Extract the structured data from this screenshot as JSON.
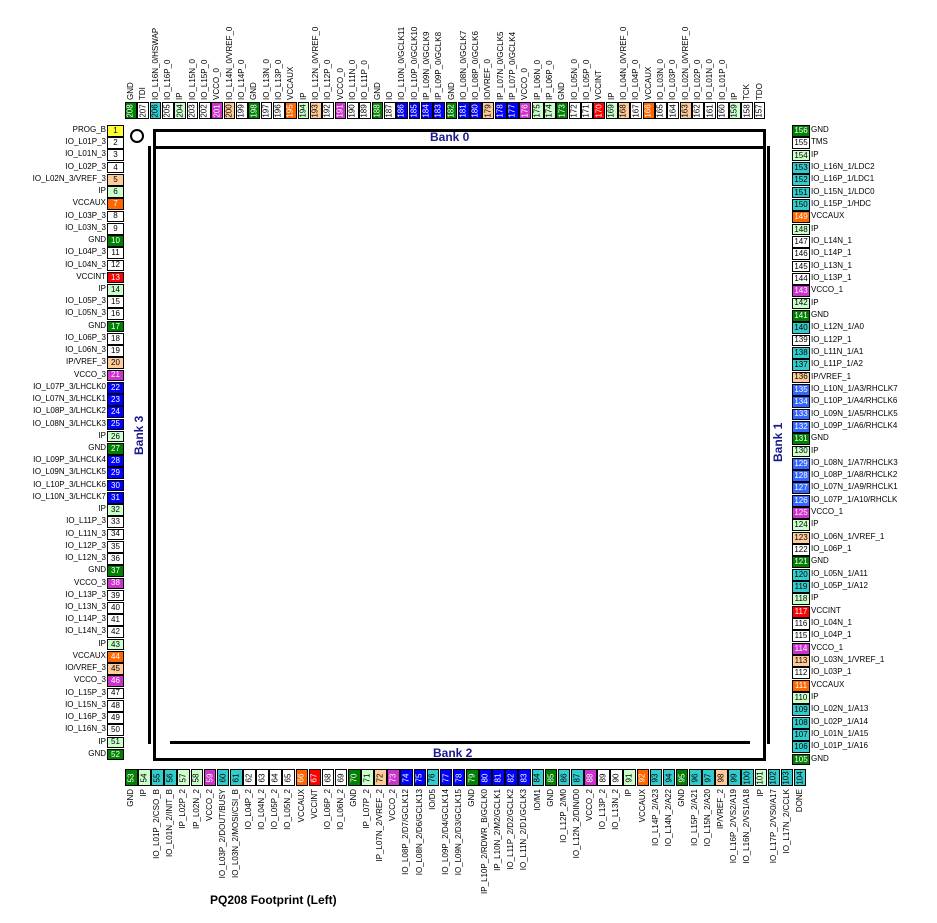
{
  "title": "PQ208 Footprint (Left)",
  "banks": {
    "top": "Bank 0",
    "right": "Bank 1",
    "bottom": "Bank 2",
    "left": "Bank 3"
  },
  "colors": {
    "GND": "#008000",
    "VCCO": "#cc33cc",
    "VCCINT": "#ff0000",
    "VCCAUX": "#ff6600",
    "IP": "#ccffcc",
    "VREF": "#ffcc99",
    "GCLK": "#0000ff",
    "LHCLK": "#0000ff",
    "RHCLK": "#3366ff",
    "CONFIG": "#33cccc",
    "PROG": "#ffff33",
    "IO": "#ffffff",
    "JTAG": "#ffffff",
    "DUAL": "#33cccc"
  },
  "left_pins": [
    {
      "n": "1",
      "label": "PROG_B",
      "type": "PROG"
    },
    {
      "n": "2",
      "label": "IO_L01P_3",
      "type": "IO"
    },
    {
      "n": "3",
      "label": "IO_L01N_3",
      "type": "IO"
    },
    {
      "n": "4",
      "label": "IO_L02P_3",
      "type": "IO"
    },
    {
      "n": "5",
      "label": "IO_L02N_3/VREF_3",
      "type": "VREF"
    },
    {
      "n": "6",
      "label": "IP",
      "type": "IP"
    },
    {
      "n": "7",
      "label": "VCCAUX",
      "type": "VCCAUX"
    },
    {
      "n": "8",
      "label": "IO_L03P_3",
      "type": "IO"
    },
    {
      "n": "9",
      "label": "IO_L03N_3",
      "type": "IO"
    },
    {
      "n": "10",
      "label": "GND",
      "type": "GND"
    },
    {
      "n": "11",
      "label": "IO_L04P_3",
      "type": "IO"
    },
    {
      "n": "12",
      "label": "IO_L04N_3",
      "type": "IO"
    },
    {
      "n": "13",
      "label": "VCCINT",
      "type": "VCCINT"
    },
    {
      "n": "14",
      "label": "IP",
      "type": "IP"
    },
    {
      "n": "15",
      "label": "IO_L05P_3",
      "type": "IO"
    },
    {
      "n": "16",
      "label": "IO_L05N_3",
      "type": "IO"
    },
    {
      "n": "17",
      "label": "GND",
      "type": "GND"
    },
    {
      "n": "18",
      "label": "IO_L06P_3",
      "type": "IO"
    },
    {
      "n": "19",
      "label": "IO_L06N_3",
      "type": "IO"
    },
    {
      "n": "20",
      "label": "IP/VREF_3",
      "type": "VREF"
    },
    {
      "n": "21",
      "label": "VCCO_3",
      "type": "VCCO"
    },
    {
      "n": "22",
      "label": "IO_L07P_3/LHCLK0",
      "type": "LHCLK"
    },
    {
      "n": "23",
      "label": "IO_L07N_3/LHCLK1",
      "type": "LHCLK"
    },
    {
      "n": "24",
      "label": "IO_L08P_3/LHCLK2",
      "type": "LHCLK"
    },
    {
      "n": "25",
      "label": "IO_L08N_3/LHCLK3",
      "type": "LHCLK"
    },
    {
      "n": "26",
      "label": "IP",
      "type": "IP"
    },
    {
      "n": "27",
      "label": "GND",
      "type": "GND"
    },
    {
      "n": "28",
      "label": "IO_L09P_3/LHCLK4",
      "type": "LHCLK"
    },
    {
      "n": "29",
      "label": "IO_L09N_3/LHCLK5",
      "type": "LHCLK"
    },
    {
      "n": "30",
      "label": "IO_L10P_3/LHCLK6",
      "type": "LHCLK"
    },
    {
      "n": "31",
      "label": "IO_L10N_3/LHCLK7",
      "type": "LHCLK"
    },
    {
      "n": "32",
      "label": "IP",
      "type": "IP"
    },
    {
      "n": "33",
      "label": "IO_L11P_3",
      "type": "IO"
    },
    {
      "n": "34",
      "label": "IO_L11N_3",
      "type": "IO"
    },
    {
      "n": "35",
      "label": "IO_L12P_3",
      "type": "IO"
    },
    {
      "n": "36",
      "label": "IO_L12N_3",
      "type": "IO"
    },
    {
      "n": "37",
      "label": "GND",
      "type": "GND"
    },
    {
      "n": "38",
      "label": "VCCO_3",
      "type": "VCCO"
    },
    {
      "n": "39",
      "label": "IO_L13P_3",
      "type": "IO"
    },
    {
      "n": "40",
      "label": "IO_L13N_3",
      "type": "IO"
    },
    {
      "n": "41",
      "label": "IO_L14P_3",
      "type": "IO"
    },
    {
      "n": "42",
      "label": "IO_L14N_3",
      "type": "IO"
    },
    {
      "n": "43",
      "label": "IP",
      "type": "IP"
    },
    {
      "n": "44",
      "label": "VCCAUX",
      "type": "VCCAUX"
    },
    {
      "n": "45",
      "label": "IO/VREF_3",
      "type": "VREF"
    },
    {
      "n": "46",
      "label": "VCCO_3",
      "type": "VCCO"
    },
    {
      "n": "47",
      "label": "IO_L15P_3",
      "type": "IO"
    },
    {
      "n": "48",
      "label": "IO_L15N_3",
      "type": "IO"
    },
    {
      "n": "49",
      "label": "IO_L16P_3",
      "type": "IO"
    },
    {
      "n": "50",
      "label": "IO_L16N_3",
      "type": "IO"
    },
    {
      "n": "51",
      "label": "IP",
      "type": "IP"
    },
    {
      "n": "52",
      "label": "GND",
      "type": "GND"
    }
  ],
  "right_pins": [
    {
      "n": "156",
      "label": "GND",
      "type": "GND"
    },
    {
      "n": "155",
      "label": "TMS",
      "type": "JTAG"
    },
    {
      "n": "154",
      "label": "IP",
      "type": "IP"
    },
    {
      "n": "153",
      "label": "IO_L16N_1/LDC2",
      "type": "DUAL"
    },
    {
      "n": "152",
      "label": "IO_L16P_1/LDC1",
      "type": "DUAL"
    },
    {
      "n": "151",
      "label": "IO_L15N_1/LDC0",
      "type": "DUAL"
    },
    {
      "n": "150",
      "label": "IO_L15P_1/HDC",
      "type": "DUAL"
    },
    {
      "n": "149",
      "label": "VCCAUX",
      "type": "VCCAUX"
    },
    {
      "n": "148",
      "label": "IP",
      "type": "IP"
    },
    {
      "n": "147",
      "label": "IO_L14N_1",
      "type": "IO"
    },
    {
      "n": "146",
      "label": "IO_L14P_1",
      "type": "IO"
    },
    {
      "n": "145",
      "label": "IO_L13N_1",
      "type": "IO"
    },
    {
      "n": "144",
      "label": "IO_L13P_1",
      "type": "IO"
    },
    {
      "n": "143",
      "label": "VCCO_1",
      "type": "VCCO"
    },
    {
      "n": "142",
      "label": "IP",
      "type": "IP"
    },
    {
      "n": "141",
      "label": "GND",
      "type": "GND"
    },
    {
      "n": "140",
      "label": "IO_L12N_1/A0",
      "type": "DUAL"
    },
    {
      "n": "139",
      "label": "IO_L12P_1",
      "type": "IO"
    },
    {
      "n": "138",
      "label": "IO_L11N_1/A1",
      "type": "DUAL"
    },
    {
      "n": "137",
      "label": "IO_L11P_1/A2",
      "type": "DUAL"
    },
    {
      "n": "136",
      "label": "IP/VREF_1",
      "type": "VREF"
    },
    {
      "n": "135",
      "label": "IO_L10N_1/A3/RHCLK7",
      "type": "RHCLK"
    },
    {
      "n": "134",
      "label": "IO_L10P_1/A4/RHCLK6",
      "type": "RHCLK"
    },
    {
      "n": "133",
      "label": "IO_L09N_1/A5/RHCLK5",
      "type": "RHCLK"
    },
    {
      "n": "132",
      "label": "IO_L09P_1/A6/RHCLK4",
      "type": "RHCLK"
    },
    {
      "n": "131",
      "label": "GND",
      "type": "GND"
    },
    {
      "n": "130",
      "label": "IP",
      "type": "IP"
    },
    {
      "n": "129",
      "label": "IO_L08N_1/A7/RHCLK3",
      "type": "RHCLK"
    },
    {
      "n": "128",
      "label": "IO_L08P_1/A8/RHCLK2",
      "type": "RHCLK"
    },
    {
      "n": "127",
      "label": "IO_L07N_1/A9/RHCLK1",
      "type": "RHCLK"
    },
    {
      "n": "126",
      "label": "IO_L07P_1/A10/RHCLK",
      "type": "RHCLK"
    },
    {
      "n": "125",
      "label": "VCCO_1",
      "type": "VCCO"
    },
    {
      "n": "124",
      "label": "IP",
      "type": "IP"
    },
    {
      "n": "123",
      "label": "IO_L06N_1/VREF_1",
      "type": "VREF"
    },
    {
      "n": "122",
      "label": "IO_L06P_1",
      "type": "IO"
    },
    {
      "n": "121",
      "label": "GND",
      "type": "GND"
    },
    {
      "n": "120",
      "label": "IO_L05N_1/A11",
      "type": "DUAL"
    },
    {
      "n": "119",
      "label": "IO_L05P_1/A12",
      "type": "DUAL"
    },
    {
      "n": "118",
      "label": "IP",
      "type": "IP"
    },
    {
      "n": "117",
      "label": "VCCINT",
      "type": "VCCINT"
    },
    {
      "n": "116",
      "label": "IO_L04N_1",
      "type": "IO"
    },
    {
      "n": "115",
      "label": "IO_L04P_1",
      "type": "IO"
    },
    {
      "n": "114",
      "label": "VCCO_1",
      "type": "VCCO"
    },
    {
      "n": "113",
      "label": "IO_L03N_1/VREF_1",
      "type": "VREF"
    },
    {
      "n": "112",
      "label": "IO_L03P_1",
      "type": "IO"
    },
    {
      "n": "111",
      "label": "VCCAUX",
      "type": "VCCAUX"
    },
    {
      "n": "110",
      "label": "IP",
      "type": "IP"
    },
    {
      "n": "109",
      "label": "IO_L02N_1/A13",
      "type": "DUAL"
    },
    {
      "n": "108",
      "label": "IO_L02P_1/A14",
      "type": "DUAL"
    },
    {
      "n": "107",
      "label": "IO_L01N_1/A15",
      "type": "DUAL"
    },
    {
      "n": "106",
      "label": "IO_L01P_1/A16",
      "type": "DUAL"
    },
    {
      "n": "105",
      "label": "GND",
      "type": "GND"
    }
  ],
  "top_pins": [
    {
      "n": "208",
      "label": "GND",
      "type": "GND"
    },
    {
      "n": "207",
      "label": "TDI",
      "type": "JTAG"
    },
    {
      "n": "206",
      "label": "IO_L16N_0/HSWAP",
      "type": "DUAL"
    },
    {
      "n": "205",
      "label": "IO_L16P_0",
      "type": "IO"
    },
    {
      "n": "204",
      "label": "IP",
      "type": "IP"
    },
    {
      "n": "203",
      "label": "IO_L15N_0",
      "type": "IO"
    },
    {
      "n": "202",
      "label": "IO_L15P_0",
      "type": "IO"
    },
    {
      "n": "201",
      "label": "VCCO_0",
      "type": "VCCO"
    },
    {
      "n": "200",
      "label": "IO_L14N_0/VREF_0",
      "type": "VREF"
    },
    {
      "n": "199",
      "label": "IO_L14P_0",
      "type": "IO"
    },
    {
      "n": "198",
      "label": "GND",
      "type": "GND"
    },
    {
      "n": "197",
      "label": "IO_L13N_0",
      "type": "IO"
    },
    {
      "n": "196",
      "label": "IO_L13P_0",
      "type": "IO"
    },
    {
      "n": "195",
      "label": "VCCAUX",
      "type": "VCCAUX"
    },
    {
      "n": "194",
      "label": "IP",
      "type": "IP"
    },
    {
      "n": "193",
      "label": "IO_L12N_0/VREF_0",
      "type": "VREF"
    },
    {
      "n": "192",
      "label": "IO_L12P_0",
      "type": "IO"
    },
    {
      "n": "191",
      "label": "VCCO_0",
      "type": "VCCO"
    },
    {
      "n": "190",
      "label": "IO_L11N_0",
      "type": "IO"
    },
    {
      "n": "189",
      "label": "IO_L11P_0",
      "type": "IO"
    },
    {
      "n": "188",
      "label": "GND",
      "type": "GND"
    },
    {
      "n": "187",
      "label": "IO",
      "type": "IO"
    },
    {
      "n": "186",
      "label": "IO_L10N_0/GCLK11",
      "type": "GCLK"
    },
    {
      "n": "185",
      "label": "IO_L10P_0/GCLK10",
      "type": "GCLK"
    },
    {
      "n": "184",
      "label": "IP_L09N_0/GCLK9",
      "type": "GCLK"
    },
    {
      "n": "183",
      "label": "IP_L09P_0/GCLK8",
      "type": "GCLK"
    },
    {
      "n": "182",
      "label": "GND",
      "type": "GND"
    },
    {
      "n": "181",
      "label": "IO_L08N_0/GCLK7",
      "type": "GCLK"
    },
    {
      "n": "180",
      "label": "IO_L08P_0/GCLK6",
      "type": "GCLK"
    },
    {
      "n": "179",
      "label": "IO/VREF_0",
      "type": "VREF"
    },
    {
      "n": "178",
      "label": "IP_L07N_0/GCLK5",
      "type": "GCLK"
    },
    {
      "n": "177",
      "label": "IP_L07P_0/GCLK4",
      "type": "GCLK"
    },
    {
      "n": "176",
      "label": "VCCO_0",
      "type": "VCCO"
    },
    {
      "n": "175",
      "label": "IP_L06N_0",
      "type": "IP"
    },
    {
      "n": "174",
      "label": "IP_L06P_0",
      "type": "IP"
    },
    {
      "n": "173",
      "label": "GND",
      "type": "GND"
    },
    {
      "n": "172",
      "label": "IO_L05N_0",
      "type": "IO"
    },
    {
      "n": "171",
      "label": "IO_L05P_0",
      "type": "IO"
    },
    {
      "n": "170",
      "label": "VCCINT",
      "type": "VCCINT"
    },
    {
      "n": "169",
      "label": "IP",
      "type": "IP"
    },
    {
      "n": "168",
      "label": "IO_L04N_0/VREF_0",
      "type": "VREF"
    },
    {
      "n": "167",
      "label": "IO_L04P_0",
      "type": "IO"
    },
    {
      "n": "166",
      "label": "VCCAUX",
      "type": "VCCAUX"
    },
    {
      "n": "165",
      "label": "IO_L03N_0",
      "type": "IO"
    },
    {
      "n": "164",
      "label": "IO_L03P_0",
      "type": "IO"
    },
    {
      "n": "163",
      "label": "IO_L02N_0/VREF_0",
      "type": "VREF"
    },
    {
      "n": "162",
      "label": "IO_L02P_0",
      "type": "IO"
    },
    {
      "n": "161",
      "label": "IO_L01N_0",
      "type": "IO"
    },
    {
      "n": "160",
      "label": "IO_L01P_0",
      "type": "IO"
    },
    {
      "n": "159",
      "label": "IP",
      "type": "IP"
    },
    {
      "n": "158",
      "label": "TCK",
      "type": "JTAG"
    },
    {
      "n": "157",
      "label": "TDO",
      "type": "JTAG"
    }
  ],
  "bottom_pins": [
    {
      "n": "53",
      "label": "GND",
      "type": "GND"
    },
    {
      "n": "54",
      "label": "IP",
      "type": "IP"
    },
    {
      "n": "55",
      "label": "IO_L01P_2/CSO_B",
      "type": "DUAL"
    },
    {
      "n": "56",
      "label": "IO_L01N_2/INIT_B",
      "type": "DUAL"
    },
    {
      "n": "57",
      "label": "IP_L02P_2",
      "type": "IP"
    },
    {
      "n": "58",
      "label": "IP_L02N_2",
      "type": "IP"
    },
    {
      "n": "59",
      "label": "VCCO_2",
      "type": "VCCO"
    },
    {
      "n": "60",
      "label": "IO_L03P_2/DOUT/BUSY",
      "type": "DUAL"
    },
    {
      "n": "61",
      "label": "IO_L03N_2/MOSI/CSI_B",
      "type": "DUAL"
    },
    {
      "n": "62",
      "label": "IO_L04P_2",
      "type": "IO"
    },
    {
      "n": "63",
      "label": "IO_L04N_2",
      "type": "IO"
    },
    {
      "n": "64",
      "label": "IO_L05P_2",
      "type": "IO"
    },
    {
      "n": "65",
      "label": "IO_L05N_2",
      "type": "IO"
    },
    {
      "n": "66",
      "label": "VCCAUX",
      "type": "VCCAUX"
    },
    {
      "n": "67",
      "label": "VCCINT",
      "type": "VCCINT"
    },
    {
      "n": "68",
      "label": "IO_L06P_2",
      "type": "IO"
    },
    {
      "n": "69",
      "label": "IO_L06N_2",
      "type": "IO"
    },
    {
      "n": "70",
      "label": "GND",
      "type": "GND"
    },
    {
      "n": "71",
      "label": "IP_L07P_2",
      "type": "IP"
    },
    {
      "n": "72",
      "label": "IP_L07N_2/VREF_2",
      "type": "VREF"
    },
    {
      "n": "73",
      "label": "VCCO_2",
      "type": "VCCO"
    },
    {
      "n": "74",
      "label": "IO_L08P_2/D7/GCLK12",
      "type": "GCLK"
    },
    {
      "n": "75",
      "label": "IO_L08N_2/D6/GCLK13",
      "type": "GCLK"
    },
    {
      "n": "76",
      "label": "IO/D5",
      "type": "DUAL"
    },
    {
      "n": "77",
      "label": "IO_L09P_2/D4/GCLK14",
      "type": "GCLK"
    },
    {
      "n": "78",
      "label": "IO_L09N_2/D3/GCLK15",
      "type": "GCLK"
    },
    {
      "n": "79",
      "label": "GND",
      "type": "GND"
    },
    {
      "n": "80",
      "label": "IP_L10P_2/RDWR_B/GCLK0",
      "type": "GCLK"
    },
    {
      "n": "81",
      "label": "IP_L10N_2/M2/GCLK1",
      "type": "GCLK"
    },
    {
      "n": "82",
      "label": "IO_L11P_2/D2/GCLK2",
      "type": "GCLK"
    },
    {
      "n": "83",
      "label": "IO_L11N_2/D1/GCLK3",
      "type": "GCLK"
    },
    {
      "n": "84",
      "label": "IO/M1",
      "type": "DUAL"
    },
    {
      "n": "85",
      "label": "GND",
      "type": "GND"
    },
    {
      "n": "86",
      "label": "IO_L12P_2/M0",
      "type": "DUAL"
    },
    {
      "n": "87",
      "label": "IO_L12N_2/DIN/D0",
      "type": "DUAL"
    },
    {
      "n": "88",
      "label": "VCCO_2",
      "type": "VCCO"
    },
    {
      "n": "89",
      "label": "IO_L13P_2",
      "type": "IO"
    },
    {
      "n": "90",
      "label": "IO_L13N_2",
      "type": "IO"
    },
    {
      "n": "91",
      "label": "IP",
      "type": "IP"
    },
    {
      "n": "92",
      "label": "VCCAUX",
      "type": "VCCAUX"
    },
    {
      "n": "93",
      "label": "IO_L14P_2/A23",
      "type": "DUAL"
    },
    {
      "n": "94",
      "label": "IO_L14N_2/A22",
      "type": "DUAL"
    },
    {
      "n": "95",
      "label": "GND",
      "type": "GND"
    },
    {
      "n": "96",
      "label": "IO_L15P_2/A21",
      "type": "DUAL"
    },
    {
      "n": "97",
      "label": "IO_L15N_2/A20",
      "type": "DUAL"
    },
    {
      "n": "98",
      "label": "IP/VREF_2",
      "type": "VREF"
    },
    {
      "n": "99",
      "label": "IO_L16P_2/VS2/A19",
      "type": "DUAL"
    },
    {
      "n": "100",
      "label": "IO_L16N_2/VS1/A18",
      "type": "DUAL"
    },
    {
      "n": "101",
      "label": "IP",
      "type": "IP"
    },
    {
      "n": "102",
      "label": "IO_L17P_2/VS0/A17",
      "type": "DUAL"
    },
    {
      "n": "103",
      "label": "IO_L17N_2/CCLK",
      "type": "DUAL"
    },
    {
      "n": "104",
      "label": "DONE",
      "type": "DUAL"
    }
  ]
}
